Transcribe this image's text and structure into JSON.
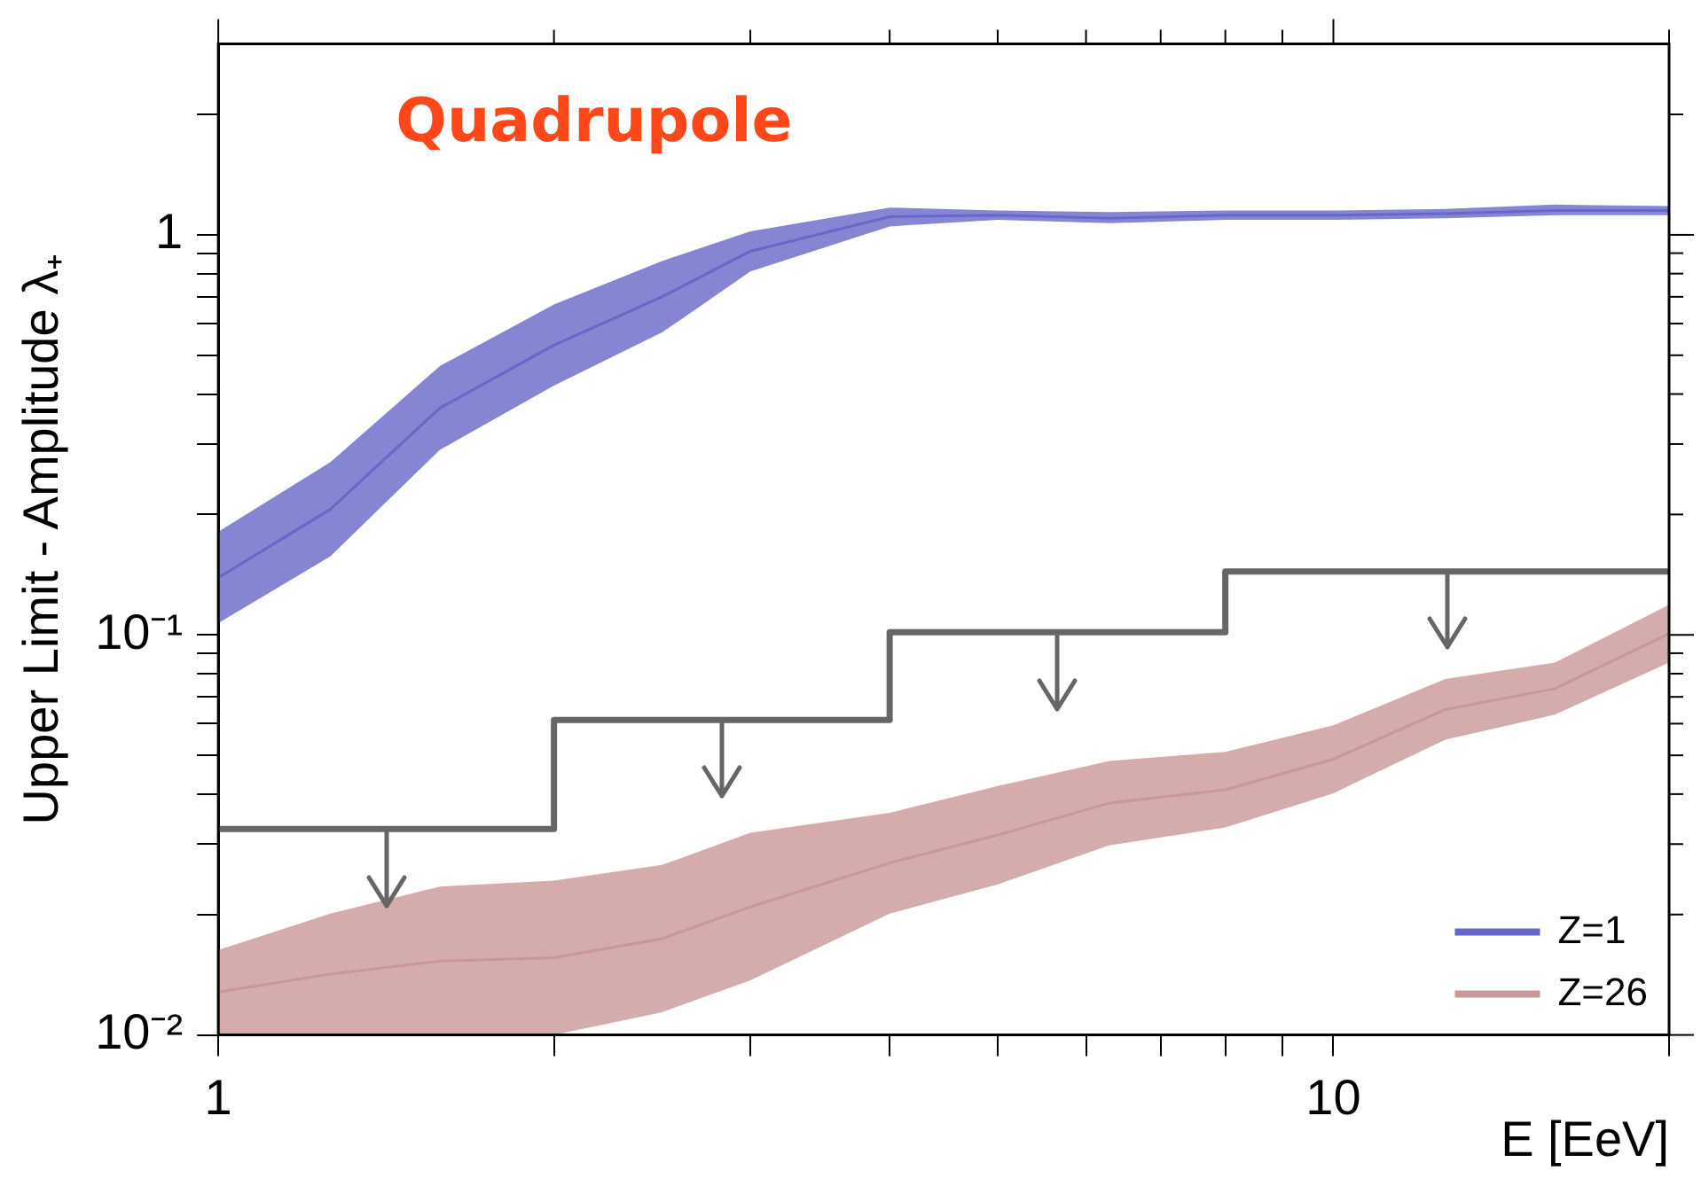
{
  "chart_data": {
    "type": "line",
    "title": "Quadrupole",
    "xlabel": "E [EeV]",
    "ylabel": "Upper Limit - Amplitude λ₊",
    "log": "xy",
    "grid": false,
    "legend": "bottom right",
    "marker": "none",
    "xlim": [
      1,
      20
    ],
    "xticks": [
      1,
      {
        "value": 2,
        "label": null
      },
      {
        "value": 3,
        "label": null
      },
      {
        "value": 4,
        "label": null
      },
      {
        "value": 5,
        "label": null
      },
      {
        "value": 6,
        "label": null
      },
      {
        "value": 7,
        "label": null
      },
      {
        "value": 8,
        "label": null
      },
      {
        "value": 9,
        "label": null
      },
      10,
      {
        "value": 20,
        "label": null
      }
    ],
    "ylim": [
      0.01,
      3
    ],
    "yticks": [
      {
        "value": 0.01,
        "label": "10⁻²"
      },
      {
        "value": 0.02,
        "label": null
      },
      {
        "value": 0.03,
        "label": null
      },
      {
        "value": 0.04,
        "label": null
      },
      {
        "value": 0.05,
        "label": null
      },
      {
        "value": 0.06,
        "label": null
      },
      {
        "value": 0.07,
        "label": null
      },
      {
        "value": 0.08,
        "label": null
      },
      {
        "value": 0.09,
        "label": null
      },
      {
        "value": 0.1,
        "label": "10⁻¹"
      },
      {
        "value": 0.2,
        "label": null
      },
      {
        "value": 0.3,
        "label": null
      },
      {
        "value": 0.4,
        "label": null
      },
      {
        "value": 0.5,
        "label": null
      },
      {
        "value": 0.6,
        "label": null
      },
      {
        "value": 0.7,
        "label": null
      },
      {
        "value": 0.8,
        "label": null
      },
      {
        "value": 0.9,
        "label": null
      },
      1,
      {
        "value": 2,
        "label": null
      }
    ],
    "series": [
      {
        "name": "Z=1",
        "color": "#6767c9",
        "x": [
          1,
          1.26,
          1.58,
          2,
          2.5,
          3,
          4,
          5,
          6.3,
          8,
          10,
          12.6,
          15.8,
          20
        ],
        "values": [
          0.139,
          0.206,
          0.369,
          0.53,
          0.7,
          0.91,
          1.11,
          1.12,
          1.1,
          1.12,
          1.12,
          1.13,
          1.15,
          1.15
        ],
        "lower": [
          0.107,
          0.157,
          0.29,
          0.42,
          0.57,
          0.81,
          1.05,
          1.09,
          1.07,
          1.09,
          1.09,
          1.1,
          1.12,
          1.12
        ],
        "upper": [
          0.181,
          0.27,
          0.47,
          0.67,
          0.86,
          1.02,
          1.17,
          1.15,
          1.14,
          1.15,
          1.15,
          1.16,
          1.19,
          1.18
        ]
      },
      {
        "name": "Z=26",
        "color": "#c99797",
        "x": [
          1,
          1.26,
          1.58,
          2,
          2.5,
          3,
          4,
          5,
          6.3,
          8,
          10,
          12.6,
          15.8,
          20
        ],
        "values": [
          0.0128,
          0.0142,
          0.0153,
          0.0156,
          0.0174,
          0.0209,
          0.0269,
          0.0316,
          0.038,
          0.041,
          0.0489,
          0.0651,
          0.0734,
          0.1007
        ],
        "lower": [
          0.01,
          0.01,
          0.01,
          0.01,
          0.0114,
          0.0137,
          0.0201,
          0.0238,
          0.0298,
          0.033,
          0.0402,
          0.0547,
          0.0632,
          0.0853
        ],
        "upper": [
          0.0163,
          0.0201,
          0.0235,
          0.0243,
          0.0266,
          0.032,
          0.0359,
          0.0419,
          0.0484,
          0.051,
          0.0594,
          0.0776,
          0.0853,
          0.119
        ]
      },
      {
        "color": "#666666",
        "type": "step",
        "x": [
          1,
          2,
          4,
          8,
          20
        ],
        "values": [
          0.0327,
          0.0613,
          0.1016,
          0.144,
          0.144
        ]
      }
    ]
  }
}
